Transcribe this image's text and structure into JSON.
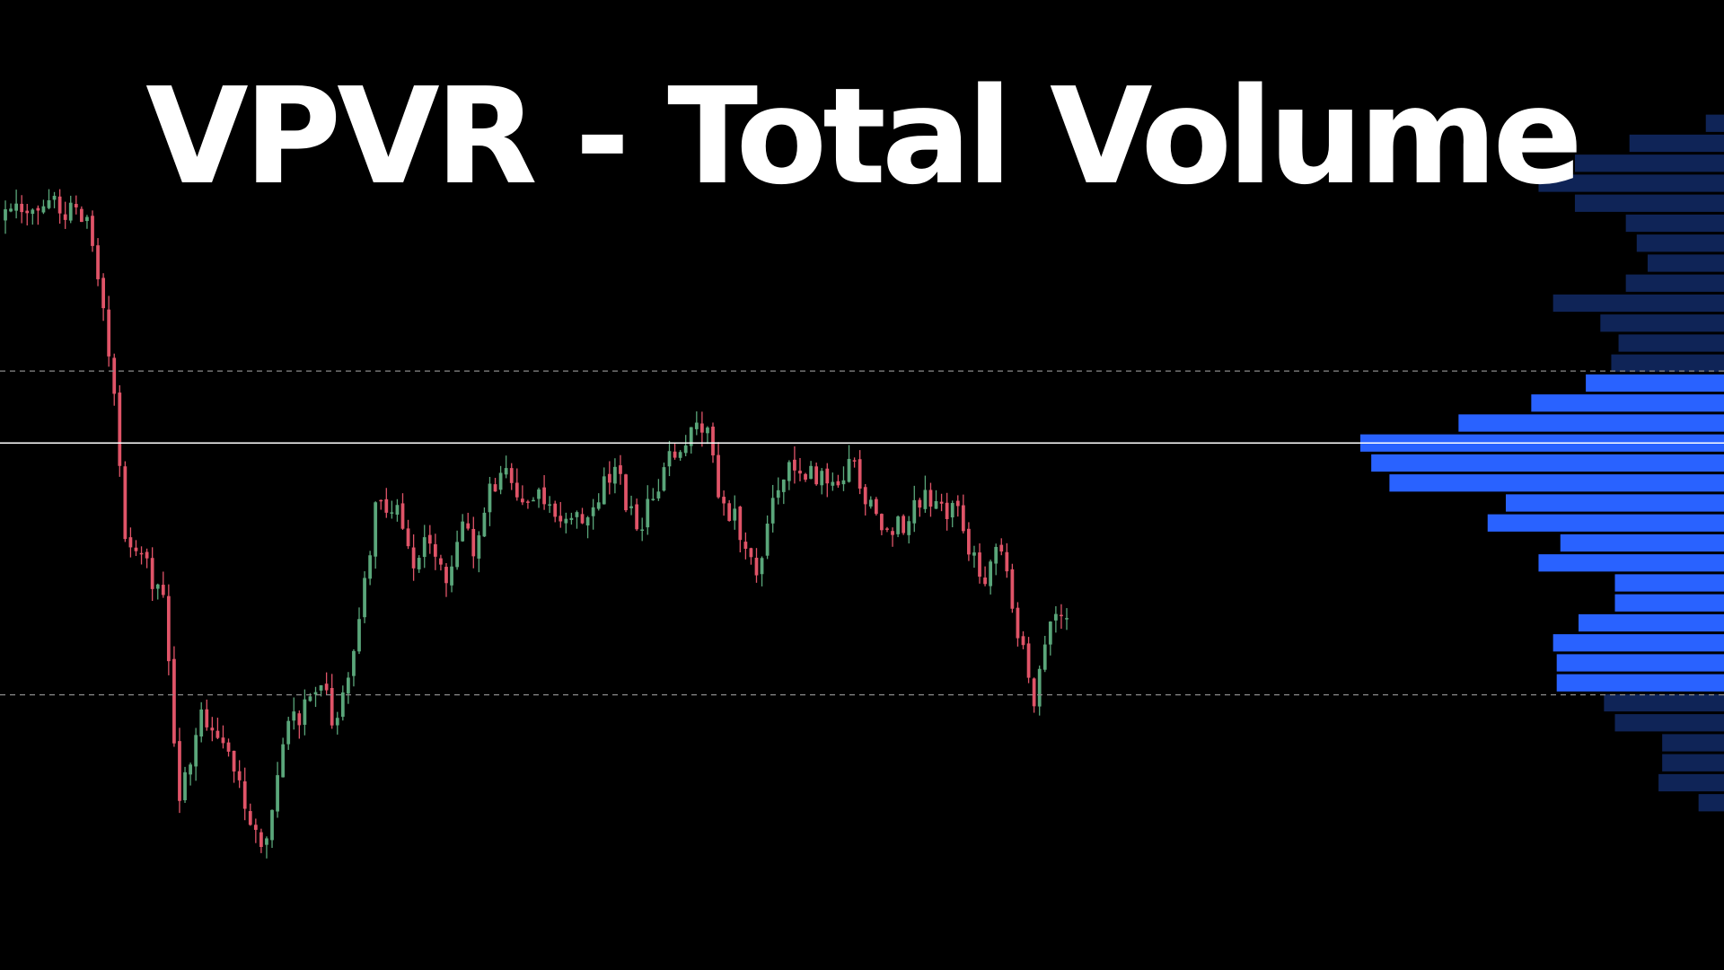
{
  "chart_data": {
    "type": "candlestick-volume-profile",
    "title": "VPVR - Total Volume",
    "colors": {
      "background": "#000000",
      "candle_up": "#5aa67a",
      "candle_down": "#e05468",
      "profile_value_area": "#2962ff",
      "profile_outside_value_area": "#0f2457",
      "poc_line": "#ffffff",
      "value_area_lines": "#8a8a8a"
    },
    "price_range": [
      0,
      100
    ],
    "candle_path": [
      [
        0,
        85.5
      ],
      [
        8,
        87.5
      ],
      [
        15,
        85.0
      ],
      [
        20,
        65.0
      ],
      [
        22,
        46.0
      ],
      [
        25,
        44.0
      ],
      [
        29,
        37.0
      ],
      [
        32,
        13.5
      ],
      [
        36,
        24.0
      ],
      [
        40,
        21.0
      ],
      [
        43,
        15.0
      ],
      [
        47,
        5.5
      ],
      [
        52,
        22.0
      ],
      [
        58,
        27.0
      ],
      [
        61,
        22.0
      ],
      [
        65,
        35.0
      ],
      [
        68,
        49.5
      ],
      [
        72,
        50.0
      ],
      [
        75,
        42.0
      ],
      [
        78,
        46.0
      ],
      [
        81,
        40.5
      ],
      [
        84,
        47.0
      ],
      [
        86,
        44.0
      ],
      [
        89,
        52.0
      ],
      [
        92,
        53.0
      ],
      [
        95,
        49.5
      ],
      [
        98,
        51.5
      ],
      [
        103,
        48.0
      ],
      [
        106,
        48.5
      ],
      [
        109,
        51.0
      ],
      [
        112,
        54.0
      ],
      [
        116,
        46.5
      ],
      [
        119,
        50.5
      ],
      [
        122,
        55.0
      ],
      [
        126,
        59.0
      ],
      [
        129,
        58.5
      ],
      [
        131,
        52.0
      ],
      [
        135,
        46.5
      ],
      [
        138,
        40.5
      ],
      [
        141,
        52.0
      ],
      [
        144,
        54.0
      ],
      [
        149,
        53.5
      ],
      [
        152,
        52.0
      ],
      [
        156,
        55.0
      ],
      [
        159,
        49.0
      ],
      [
        162,
        46.5
      ],
      [
        166,
        48.0
      ],
      [
        169,
        51.0
      ],
      [
        172,
        48.5
      ],
      [
        175,
        50.5
      ],
      [
        177,
        44.5
      ],
      [
        180,
        41.0
      ],
      [
        183,
        45.0
      ],
      [
        186,
        33.5
      ],
      [
        189,
        26.0
      ],
      [
        192,
        34.0
      ],
      [
        195,
        37.0
      ]
    ],
    "volume_profile_bins": [
      {
        "price": 97.5,
        "volume": 5
      },
      {
        "price": 95.0,
        "volume": 26
      },
      {
        "price": 92.5,
        "volume": 41
      },
      {
        "price": 90.0,
        "volume": 51
      },
      {
        "price": 87.5,
        "volume": 41
      },
      {
        "price": 85.0,
        "volume": 27
      },
      {
        "price": 82.5,
        "volume": 24
      },
      {
        "price": 80.0,
        "volume": 21
      },
      {
        "price": 77.5,
        "volume": 27
      },
      {
        "price": 75.0,
        "volume": 47
      },
      {
        "price": 72.5,
        "volume": 34
      },
      {
        "price": 70.0,
        "volume": 29
      },
      {
        "price": 67.5,
        "volume": 31
      },
      {
        "price": 65.0,
        "volume": 38
      },
      {
        "price": 62.5,
        "volume": 53
      },
      {
        "price": 60.0,
        "volume": 73
      },
      {
        "price": 57.5,
        "volume": 100
      },
      {
        "price": 55.0,
        "volume": 97
      },
      {
        "price": 52.5,
        "volume": 92
      },
      {
        "price": 50.0,
        "volume": 60
      },
      {
        "price": 47.5,
        "volume": 65
      },
      {
        "price": 45.0,
        "volume": 45
      },
      {
        "price": 42.5,
        "volume": 51
      },
      {
        "price": 40.0,
        "volume": 30
      },
      {
        "price": 37.5,
        "volume": 30
      },
      {
        "price": 35.0,
        "volume": 40
      },
      {
        "price": 32.5,
        "volume": 47
      },
      {
        "price": 30.0,
        "volume": 46
      },
      {
        "price": 27.5,
        "volume": 46
      },
      {
        "price": 25.0,
        "volume": 33
      },
      {
        "price": 22.5,
        "volume": 30
      },
      {
        "price": 20.0,
        "volume": 17
      },
      {
        "price": 17.5,
        "volume": 17
      },
      {
        "price": 15.0,
        "volume": 18
      },
      {
        "price": 12.5,
        "volume": 7
      }
    ],
    "point_of_control": 57.5,
    "value_area_high": 66.5,
    "value_area_low": 26.0,
    "grid": false,
    "legend": "none"
  }
}
